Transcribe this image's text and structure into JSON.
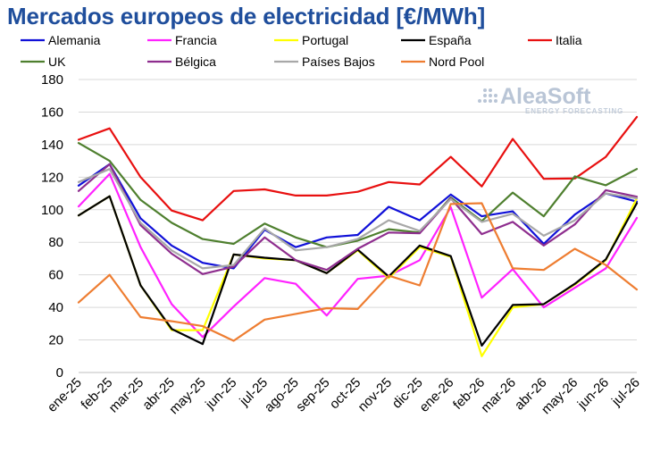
{
  "chart_data": {
    "type": "line",
    "title": "Mercados europeos de electricidad [€/MWh]",
    "xlabel": "",
    "ylabel": "",
    "ylim": [
      0,
      180
    ],
    "yticks": [
      0,
      20,
      40,
      60,
      80,
      100,
      120,
      140,
      160,
      180
    ],
    "grid": true,
    "legend_position": "top",
    "categories": [
      "ene-25",
      "feb-25",
      "mar-25",
      "abr-25",
      "may-25",
      "jun-25",
      "jul-25",
      "ago-25",
      "sep-25",
      "oct-25",
      "nov-25",
      "dic-25",
      "ene-26",
      "feb-26",
      "mar-26",
      "abr-26",
      "may-26",
      "jun-26",
      "jul-26"
    ],
    "series": [
      {
        "name": "Alemania",
        "color": "#1010d8",
        "values": [
          114.8,
          128.0,
          94.7,
          78.0,
          67.4,
          64.0,
          87.7,
          77.0,
          83.0,
          84.5,
          101.8,
          93.5,
          109.3,
          96.0,
          99.0,
          79.0,
          97.0,
          110.0,
          105.0
        ]
      },
      {
        "name": "Francia",
        "color": "#ff22ff",
        "values": [
          102.0,
          122.0,
          77.0,
          42.0,
          21.8,
          40.5,
          58.0,
          54.5,
          35.0,
          57.5,
          59.5,
          69.0,
          101.5,
          46.0,
          63.5,
          40.0,
          52.0,
          64.0,
          95.0
        ]
      },
      {
        "name": "Portugal",
        "color": "#ffff00",
        "values": [
          96.5,
          108.3,
          53.5,
          26.0,
          26.0,
          72.5,
          70.0,
          69.0,
          61.0,
          75.0,
          58.0,
          77.0,
          71.0,
          10.0,
          40.0,
          42.0,
          54.0,
          69.0,
          107.0
        ]
      },
      {
        "name": "España",
        "color": "#000000",
        "values": [
          96.5,
          108.3,
          53.5,
          26.8,
          17.5,
          72.5,
          70.5,
          69.0,
          61.0,
          75.5,
          59.0,
          78.0,
          71.5,
          16.5,
          41.5,
          42.0,
          54.5,
          69.5,
          104.0
        ]
      },
      {
        "name": "Italia",
        "color": "#e81010",
        "values": [
          143.0,
          150.0,
          120.0,
          99.5,
          93.5,
          111.5,
          112.5,
          108.7,
          108.7,
          111.0,
          117.0,
          115.5,
          132.5,
          114.3,
          143.5,
          119.0,
          119.2,
          132.5,
          157.0
        ]
      },
      {
        "name": "UK",
        "color": "#4e7f2e",
        "values": [
          141.0,
          130.0,
          106.0,
          92.0,
          82.0,
          79.0,
          91.5,
          83.0,
          77.0,
          81.0,
          88.0,
          86.0,
          107.5,
          93.0,
          110.5,
          96.0,
          120.5,
          115.0,
          125.0
        ]
      },
      {
        "name": "Bélgica",
        "color": "#8e2d8e",
        "values": [
          111.5,
          128.0,
          90.5,
          73.0,
          60.5,
          65.0,
          83.0,
          69.0,
          63.0,
          76.0,
          86.0,
          85.5,
          107.0,
          85.0,
          92.5,
          78.0,
          91.0,
          112.0,
          108.0
        ]
      },
      {
        "name": "Países Bajos",
        "color": "#a8a8a8",
        "values": [
          117.0,
          125.0,
          92.0,
          75.0,
          64.0,
          66.0,
          88.5,
          75.0,
          77.0,
          82.0,
          93.5,
          87.0,
          106.5,
          92.5,
          97.5,
          84.0,
          93.5,
          110.0,
          107.0
        ]
      },
      {
        "name": "Nord Pool",
        "color": "#ee7d31",
        "values": [
          43.0,
          60.0,
          34.0,
          31.5,
          28.5,
          19.5,
          32.5,
          36.0,
          39.5,
          39.0,
          59.5,
          53.5,
          103.5,
          104.0,
          64.0,
          63.0,
          76.0,
          66.0,
          51.0
        ]
      }
    ]
  },
  "watermark": {
    "brand": "AleaSoft",
    "tagline": "ENERGY FORECASTING",
    "color": "#b9c5d6"
  }
}
